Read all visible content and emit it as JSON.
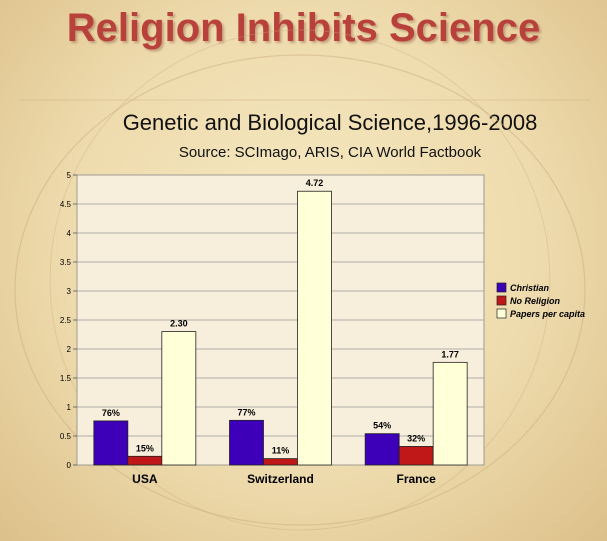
{
  "slide": {
    "title": "Religion Inhibits Science"
  },
  "chart_data": {
    "type": "bar",
    "title": "Genetic and Biological Science,1996-2008",
    "subtitle": "Source: SCImago, ARIS, CIA World Factbook",
    "categories": [
      "USA",
      "Switzerland",
      "France"
    ],
    "series": [
      {
        "name": "Christian",
        "color": "#3d00b8",
        "values": [
          0.76,
          0.77,
          0.54
        ],
        "labels": [
          "76%",
          "77%",
          "54%"
        ]
      },
      {
        "name": "No Religion",
        "color": "#c01818",
        "values": [
          0.15,
          0.11,
          0.32
        ],
        "labels": [
          "15%",
          "11%",
          "32%"
        ]
      },
      {
        "name": "Papers per capita",
        "color": "#ffffd8",
        "values": [
          2.3,
          4.72,
          1.77
        ],
        "labels": [
          "2.30",
          "4.72",
          "1.77"
        ]
      }
    ],
    "ylim": [
      0,
      5
    ],
    "yticks": [
      "0",
      "0.5",
      "1",
      "1.5",
      "2",
      "2.5",
      "3",
      "3.5",
      "4",
      "4.5",
      "5"
    ],
    "grid": true,
    "legend": "right"
  }
}
